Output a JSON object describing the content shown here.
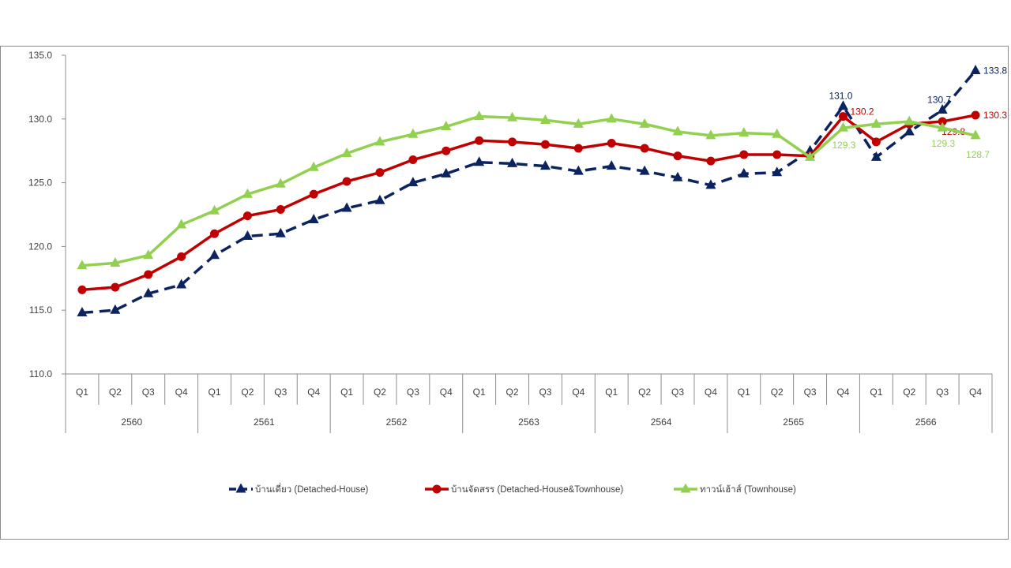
{
  "chart_data": {
    "type": "line",
    "title": "",
    "xlabel": "",
    "ylabel": "",
    "ylim": [
      110.0,
      135.0
    ],
    "yticks": [
      "110.0",
      "115.0",
      "120.0",
      "125.0",
      "130.0",
      "135.0"
    ],
    "yticks_values": [
      110,
      115,
      120,
      125,
      130,
      135
    ],
    "quarters": [
      "Q1",
      "Q2",
      "Q3",
      "Q4",
      "Q1",
      "Q2",
      "Q3",
      "Q4",
      "Q1",
      "Q2",
      "Q3",
      "Q4",
      "Q1",
      "Q2",
      "Q3",
      "Q4",
      "Q1",
      "Q2",
      "Q3",
      "Q4",
      "Q1",
      "Q2",
      "Q3",
      "Q4",
      "Q1",
      "Q2",
      "Q3",
      "Q4"
    ],
    "years": [
      "2560",
      "2561",
      "2562",
      "2563",
      "2564",
      "2565",
      "2566"
    ],
    "grid": false,
    "series": [
      {
        "name": "บ้านเดี่ยว (Detached-House)",
        "color": "#0b2461",
        "style": "dashed",
        "marker": "triangle",
        "values": [
          114.8,
          115.0,
          116.3,
          117.0,
          119.3,
          120.8,
          121.0,
          122.1,
          123.0,
          123.6,
          125.0,
          125.7,
          126.6,
          126.5,
          126.3,
          125.9,
          126.3,
          125.9,
          125.4,
          124.8,
          125.7,
          125.8,
          127.5,
          131.0,
          127.0,
          129.0,
          130.7,
          133.8
        ],
        "labels": [
          {
            "index": 23,
            "text": "131.0"
          },
          {
            "index": 26,
            "text": "130.7"
          },
          {
            "index": 27,
            "text": "133.8"
          }
        ]
      },
      {
        "name": "บ้านจัดสรร (Detached-House&Townhouse)",
        "color": "#c00000",
        "style": "solid",
        "marker": "circle",
        "values": [
          116.6,
          116.8,
          117.8,
          119.2,
          121.0,
          122.4,
          122.9,
          124.1,
          125.1,
          125.8,
          126.8,
          127.5,
          128.3,
          128.2,
          128.0,
          127.7,
          128.1,
          127.7,
          127.1,
          126.7,
          127.2,
          127.2,
          127.1,
          130.2,
          128.2,
          129.6,
          129.8,
          130.3
        ],
        "labels": [
          {
            "index": 23,
            "text": "130.2"
          },
          {
            "index": 26,
            "text": "129.8"
          },
          {
            "index": 27,
            "text": "130.3"
          }
        ]
      },
      {
        "name": "ทาวน์เฮ้าส์ (Townhouse)",
        "color": "#92d050",
        "style": "solid",
        "marker": "triangle",
        "values": [
          118.5,
          118.7,
          119.3,
          121.7,
          122.8,
          124.1,
          124.9,
          126.2,
          127.3,
          128.2,
          128.8,
          129.4,
          130.2,
          130.1,
          129.9,
          129.6,
          130.0,
          129.6,
          129.0,
          128.7,
          128.9,
          128.8,
          127.0,
          129.3,
          129.6,
          129.8,
          129.3,
          128.7
        ],
        "labels": [
          {
            "index": 23,
            "text": "129.3"
          },
          {
            "index": 26,
            "text": "129.3"
          },
          {
            "index": 27,
            "text": "128.7"
          }
        ]
      }
    ],
    "legend_position": "bottom"
  }
}
